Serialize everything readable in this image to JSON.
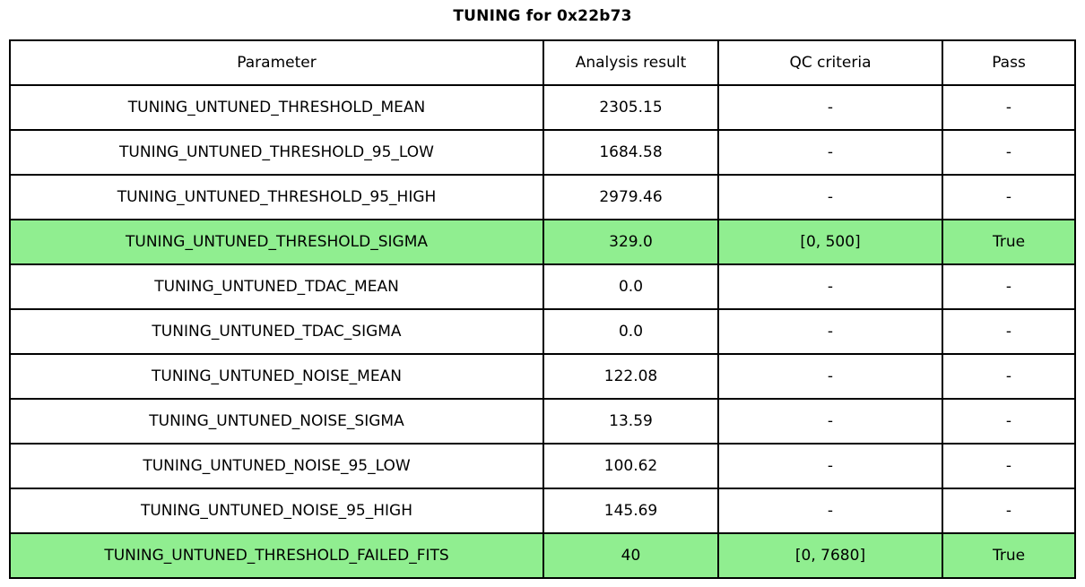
{
  "chart_data": {
    "type": "table",
    "title": "TUNING for 0x22b73",
    "columns": [
      "Parameter",
      "Analysis result",
      "QC criteria",
      "Pass"
    ],
    "rows": [
      [
        "TUNING_UNTUNED_THRESHOLD_MEAN",
        "2305.15",
        "-",
        "-"
      ],
      [
        "TUNING_UNTUNED_THRESHOLD_95_LOW",
        "1684.58",
        "-",
        "-"
      ],
      [
        "TUNING_UNTUNED_THRESHOLD_95_HIGH",
        "2979.46",
        "-",
        "-"
      ],
      [
        "TUNING_UNTUNED_THRESHOLD_SIGMA",
        "329.0",
        "[0, 500]",
        "True"
      ],
      [
        "TUNING_UNTUNED_TDAC_MEAN",
        "0.0",
        "-",
        "-"
      ],
      [
        "TUNING_UNTUNED_TDAC_SIGMA",
        "0.0",
        "-",
        "-"
      ],
      [
        "TUNING_UNTUNED_NOISE_MEAN",
        "122.08",
        "-",
        "-"
      ],
      [
        "TUNING_UNTUNED_NOISE_SIGMA",
        "13.59",
        "-",
        "-"
      ],
      [
        "TUNING_UNTUNED_NOISE_95_LOW",
        "100.62",
        "-",
        "-"
      ],
      [
        "TUNING_UNTUNED_NOISE_95_HIGH",
        "145.69",
        "-",
        "-"
      ],
      [
        "TUNING_UNTUNED_THRESHOLD_FAILED_FITS",
        "40",
        "[0, 7680]",
        "True"
      ]
    ],
    "highlighted_rows": [
      3,
      10
    ],
    "colors": {
      "highlight_green": "#90ee90",
      "border": "#000000",
      "text": "#000000",
      "background": "#ffffff"
    },
    "layout_hints": {
      "grid": "full table borders",
      "title_position": "top-center"
    }
  }
}
